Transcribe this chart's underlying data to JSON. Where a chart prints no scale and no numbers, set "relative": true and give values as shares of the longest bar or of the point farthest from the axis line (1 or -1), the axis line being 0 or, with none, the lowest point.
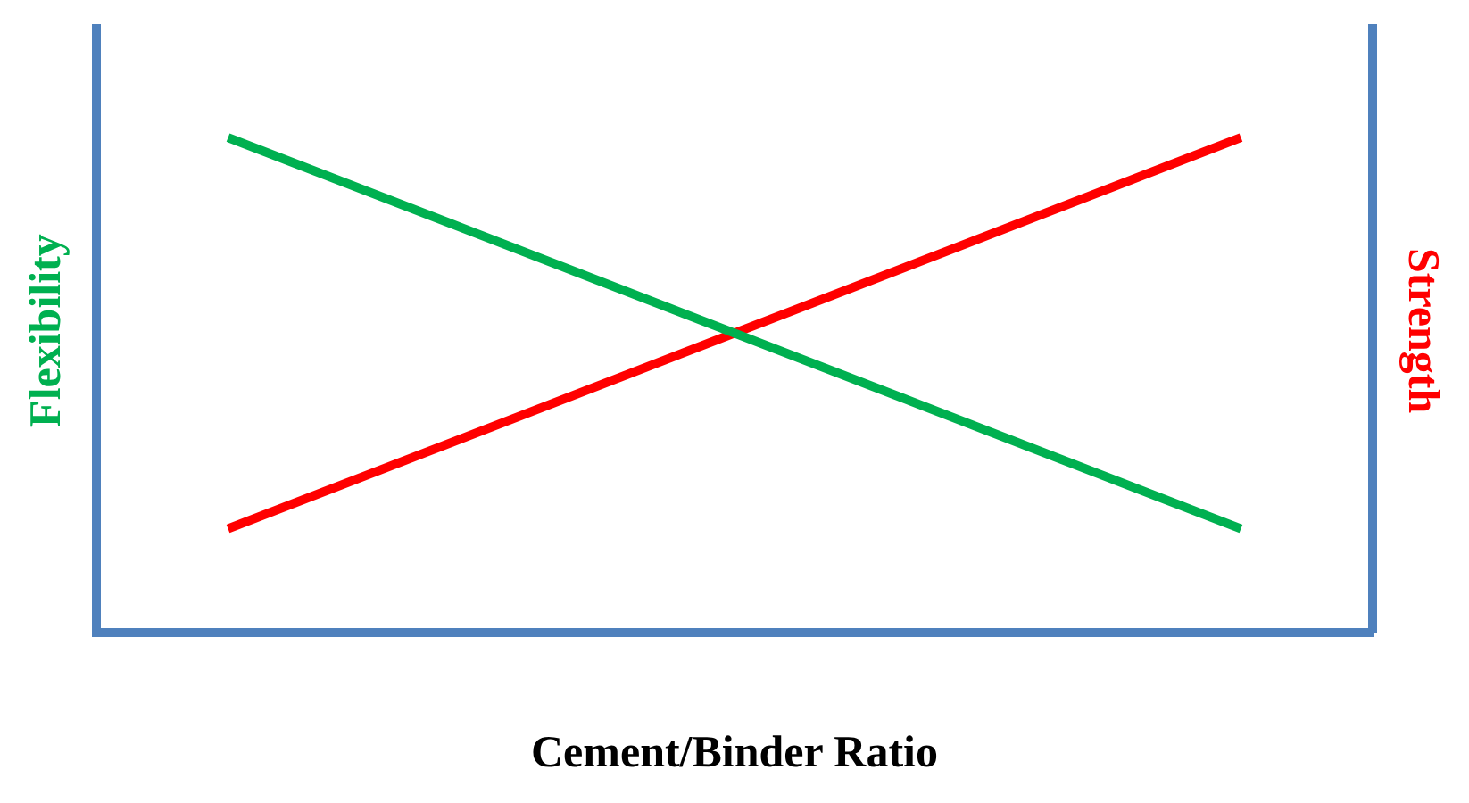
{
  "chart_data": {
    "type": "line",
    "xlabel": "Cement/Binder Ratio",
    "ylabel": "Flexibility",
    "y2label": "Strength",
    "relative": true,
    "grid": false,
    "legend": false,
    "marker": "none",
    "line_style": "solid",
    "categories": [
      null,
      null
    ],
    "series": [
      {
        "color": "#00b050",
        "values": [
          1,
          0.21
        ]
      },
      {
        "color": "#ff0000",
        "values": [
          0.21,
          1
        ]
      }
    ]
  }
}
